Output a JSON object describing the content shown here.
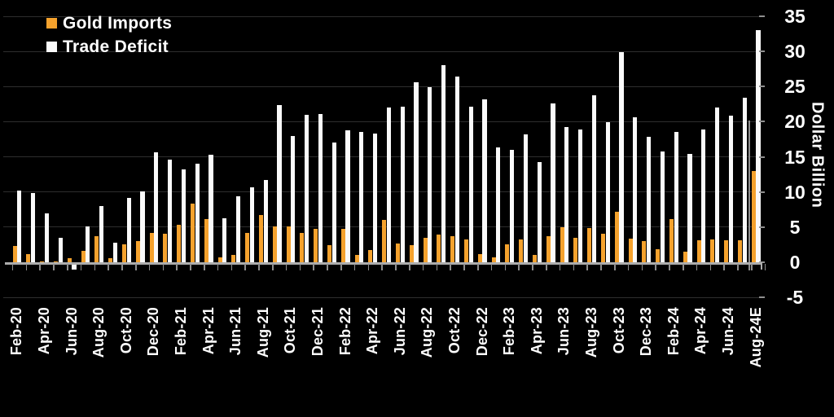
{
  "legend": [
    {
      "label": "Gold Imports",
      "color": "#F5A22D"
    },
    {
      "label": "Trade Deficit",
      "color": "#FAFAFA"
    }
  ],
  "y_axis": {
    "title": "Dollar Billion",
    "tick_values": [
      35,
      30,
      25,
      20,
      15,
      10,
      5,
      0,
      -5
    ]
  },
  "colors": {
    "background": "#000000",
    "gold_imports": "#F5A22D",
    "trade_deficit": "#FAFAFA",
    "gridline": "#2e2e2e",
    "axis": "#adadad",
    "tick": "#8f8f8f",
    "text": "#ffffff"
  },
  "chart_data": {
    "type": "bar",
    "title": "",
    "xlabel": "",
    "ylabel": "Dollar Billion",
    "ylim": [
      -5,
      35
    ],
    "y_tick_step": 5,
    "grid": true,
    "legend_position": "top-left",
    "x_tick_label_step": 2,
    "estimate_divider_before_category": "Aug-24E",
    "categories": [
      "Feb-20",
      "Mar-20",
      "Apr-20",
      "May-20",
      "Jun-20",
      "Jul-20",
      "Aug-20",
      "Sep-20",
      "Oct-20",
      "Nov-20",
      "Dec-20",
      "Jan-21",
      "Feb-21",
      "Mar-21",
      "Apr-21",
      "May-21",
      "Jun-21",
      "Jul-21",
      "Aug-21",
      "Sep-21",
      "Oct-21",
      "Nov-21",
      "Dec-21",
      "Jan-22",
      "Feb-22",
      "Mar-22",
      "Apr-22",
      "May-22",
      "Jun-22",
      "Jul-22",
      "Aug-22",
      "Sep-22",
      "Oct-22",
      "Nov-22",
      "Dec-22",
      "Jan-23",
      "Feb-23",
      "Mar-23",
      "Apr-23",
      "May-23",
      "Jun-23",
      "Jul-23",
      "Aug-23",
      "Sep-23",
      "Oct-23",
      "Nov-23",
      "Dec-23",
      "Jan-24",
      "Feb-24",
      "Mar-24",
      "Apr-24",
      "May-24",
      "Jun-24",
      "Jul-24",
      "Aug-24E"
    ],
    "series": [
      {
        "name": "Gold Imports",
        "color": "#F5A22D",
        "values": [
          2.3,
          1.2,
          0.05,
          0.1,
          0.6,
          1.6,
          3.7,
          0.6,
          2.5,
          3.0,
          4.2,
          4.0,
          5.3,
          8.4,
          6.2,
          0.7,
          1.0,
          4.2,
          6.7,
          5.1,
          5.1,
          4.2,
          4.8,
          2.4,
          4.8,
          1.0,
          1.7,
          6.0,
          2.7,
          2.4,
          3.5,
          3.9,
          3.7,
          3.2,
          1.2,
          0.7,
          2.6,
          3.3,
          1.0,
          3.7,
          5.0,
          3.5,
          4.9,
          4.1,
          7.2,
          3.4,
          3.0,
          1.9,
          6.2,
          1.5,
          3.1,
          3.3,
          3.1,
          3.1,
          13.0
        ]
      },
      {
        "name": "Trade Deficit",
        "color": "#FAFAFA",
        "values": [
          10.2,
          9.9,
          6.9,
          3.5,
          -0.8,
          5.1,
          8.0,
          2.8,
          9.1,
          10.1,
          15.7,
          14.6,
          13.2,
          14.0,
          15.3,
          6.3,
          9.4,
          10.7,
          11.7,
          22.4,
          18.0,
          21.0,
          21.1,
          17.0,
          18.8,
          18.5,
          18.3,
          22.0,
          22.1,
          25.6,
          24.9,
          28.1,
          26.4,
          22.1,
          23.2,
          16.3,
          16.0,
          18.2,
          14.3,
          22.6,
          19.2,
          18.9,
          23.8,
          19.9,
          29.9,
          20.6,
          17.9,
          15.8,
          18.6,
          15.4,
          18.9,
          22.0,
          20.9,
          23.4,
          33.0
        ]
      }
    ]
  }
}
